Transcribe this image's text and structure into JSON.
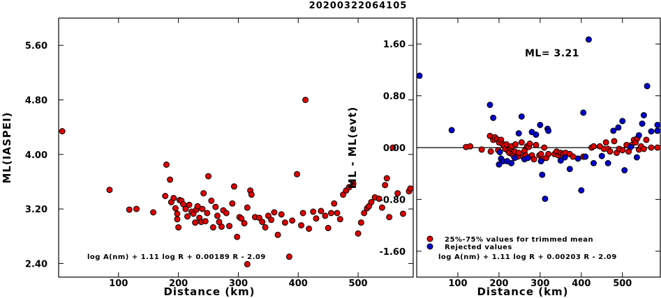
{
  "title": "20200322064105",
  "chart_data": [
    {
      "type": "scatter",
      "xlabel": "Distance (km)",
      "ylabel": "ML(IASPEI)",
      "xlim": [
        0,
        592
      ],
      "ylim": [
        2.2,
        6.0
      ],
      "xticks": [
        100,
        200,
        300,
        400,
        500
      ],
      "xtick_labels": [
        "100",
        "200",
        "300",
        "400",
        "500"
      ],
      "yticks": [
        2.4,
        3.2,
        4.0,
        4.8,
        5.6
      ],
      "ytick_labels": [
        "2.40",
        "3.20",
        "4.00",
        "4.80",
        "5.60"
      ],
      "formula": "log A(nm) + 1.11 log R + 0.00189 R - 2.09",
      "grid": false,
      "series": [
        {
          "color": "#dd0000",
          "points": [
            [
              6,
              4.34
            ],
            [
              85,
              3.48
            ],
            [
              118,
              3.19
            ],
            [
              130,
              3.2
            ],
            [
              158,
              3.15
            ],
            [
              178,
              3.39
            ],
            [
              180,
              3.85
            ],
            [
              186,
              3.63
            ],
            [
              188,
              3.3
            ],
            [
              192,
              3.36
            ],
            [
              195,
              3.21
            ],
            [
              198,
              3.05
            ],
            [
              198,
              3.13
            ],
            [
              200,
              2.93
            ],
            [
              202,
              3.33
            ],
            [
              205,
              3.32
            ],
            [
              208,
              3.27
            ],
            [
              212,
              3.2
            ],
            [
              215,
              3.09
            ],
            [
              218,
              3.26
            ],
            [
              222,
              3.16
            ],
            [
              225,
              3.13
            ],
            [
              228,
              3.0
            ],
            [
              230,
              3.19
            ],
            [
              232,
              3.24
            ],
            [
              235,
              3.07
            ],
            [
              238,
              3.01
            ],
            [
              240,
              3.2
            ],
            [
              242,
              3.43
            ],
            [
              245,
              3.02
            ],
            [
              248,
              3.14
            ],
            [
              250,
              3.68
            ],
            [
              255,
              3.32
            ],
            [
              258,
              2.93
            ],
            [
              262,
              3.23
            ],
            [
              265,
              3.1
            ],
            [
              268,
              3.01
            ],
            [
              272,
              2.94
            ],
            [
              275,
              3.18
            ],
            [
              280,
              3.14
            ],
            [
              285,
              2.95
            ],
            [
              290,
              3.28
            ],
            [
              293,
              3.53
            ],
            [
              298,
              2.79
            ],
            [
              302,
              3.08
            ],
            [
              305,
              3.06
            ],
            [
              310,
              2.99
            ],
            [
              315,
              3.22
            ],
            [
              315,
              2.39
            ],
            [
              320,
              3.47
            ],
            [
              322,
              3.41
            ],
            [
              328,
              3.08
            ],
            [
              335,
              3.07
            ],
            [
              340,
              3.01
            ],
            [
              345,
              2.93
            ],
            [
              350,
              3.1
            ],
            [
              355,
              3.04
            ],
            [
              360,
              3.15
            ],
            [
              366,
              2.82
            ],
            [
              372,
              3.12
            ],
            [
              378,
              3.0
            ],
            [
              385,
              2.5
            ],
            [
              390,
              3.03
            ],
            [
              398,
              3.71
            ],
            [
              405,
              2.96
            ],
            [
              408,
              3.14
            ],
            [
              412,
              4.8
            ],
            [
              418,
              2.91
            ],
            [
              425,
              3.16
            ],
            [
              430,
              3.06
            ],
            [
              438,
              3.17
            ],
            [
              445,
              3.1
            ],
            [
              450,
              2.92
            ],
            [
              455,
              3.14
            ],
            [
              460,
              3.28
            ],
            [
              465,
              3.14
            ],
            [
              470,
              3.05
            ],
            [
              475,
              3.41
            ],
            [
              480,
              3.47
            ],
            [
              485,
              3.52
            ],
            [
              492,
              3.57
            ],
            [
              500,
              2.84
            ],
            [
              505,
              3.0
            ],
            [
              510,
              3.14
            ],
            [
              515,
              3.21
            ],
            [
              518,
              3.24
            ],
            [
              522,
              3.3
            ],
            [
              528,
              3.37
            ],
            [
              535,
              3.35
            ],
            [
              540,
              3.22
            ],
            [
              545,
              3.55
            ],
            [
              548,
              3.65
            ],
            [
              552,
              3.08
            ],
            [
              558,
              4.1
            ],
            [
              566,
              3.43
            ],
            [
              575,
              3.13
            ],
            [
              585,
              3.46
            ],
            [
              592,
              3.5
            ]
          ]
        }
      ]
    },
    {
      "type": "scatter",
      "xlabel": "Distance (km)",
      "ylabel": "ML - ML(evt)",
      "xlim": [
        0,
        592
      ],
      "ylim": [
        -2.0,
        2.0
      ],
      "xticks": [
        100,
        200,
        300,
        400,
        500
      ],
      "xtick_labels": [
        "100",
        "200",
        "300",
        "400",
        "500"
      ],
      "yticks": [
        -1.6,
        -0.8,
        0.0,
        0.8,
        1.6
      ],
      "ytick_labels": [
        "-1.60",
        "-0.80",
        "0.00",
        "0.80",
        "1.60"
      ],
      "ml_text": "ML= 3.21",
      "formula": "log A(nm) + 1.11 log R + 0.00203 R - 2.09",
      "reference_line_y": 0.0,
      "legend": {
        "position": "bottom-left",
        "entries": [
          {
            "label": "25%-75% values for trimmed mean",
            "color": "#dd0000"
          },
          {
            "label": "Rejected values",
            "color": "#0000cc"
          }
        ]
      },
      "grid": false,
      "series": [
        {
          "name": "25%-75% values for trimmed mean",
          "color": "#dd0000",
          "points": [
            [
              120,
              0.01
            ],
            [
              130,
              0.02
            ],
            [
              158,
              -0.03
            ],
            [
              178,
              0.18
            ],
            [
              180,
              -0.06
            ],
            [
              186,
              0.12
            ],
            [
              190,
              0.16
            ],
            [
              195,
              0.13
            ],
            [
              198,
              -0.04
            ],
            [
              200,
              0.08
            ],
            [
              205,
              0.12
            ],
            [
              208,
              0.06
            ],
            [
              212,
              0.03
            ],
            [
              215,
              -0.02
            ],
            [
              218,
              0.05
            ],
            [
              222,
              -0.05
            ],
            [
              225,
              -0.08
            ],
            [
              228,
              -0.01
            ],
            [
              230,
              0.02
            ],
            [
              232,
              -0.1
            ],
            [
              235,
              -0.12
            ],
            [
              238,
              -0.06
            ],
            [
              240,
              0.05
            ],
            [
              245,
              -0.14
            ],
            [
              248,
              -0.08
            ],
            [
              255,
              0.08
            ],
            [
              258,
              -0.14
            ],
            [
              262,
              -0.05
            ],
            [
              265,
              -0.12
            ],
            [
              268,
              0.02
            ],
            [
              272,
              0.01
            ],
            [
              275,
              0.06
            ],
            [
              280,
              -0.12
            ],
            [
              285,
              -0.18
            ],
            [
              290,
              0.04
            ],
            [
              298,
              -0.12
            ],
            [
              302,
              -0.1
            ],
            [
              305,
              -0.18
            ],
            [
              310,
              0.0
            ],
            [
              315,
              -0.16
            ],
            [
              320,
              -0.1
            ],
            [
              335,
              -0.1
            ],
            [
              340,
              -0.06
            ],
            [
              345,
              -0.12
            ],
            [
              350,
              -0.08
            ],
            [
              356,
              -0.1
            ],
            [
              362,
              -0.08
            ],
            [
              372,
              -0.1
            ],
            [
              380,
              -0.14
            ],
            [
              405,
              -0.14
            ],
            [
              425,
              0.0
            ],
            [
              430,
              0.02
            ],
            [
              445,
              0.02
            ],
            [
              455,
              -0.02
            ],
            [
              460,
              0.08
            ],
            [
              465,
              -0.02
            ],
            [
              470,
              -0.06
            ],
            [
              480,
              0.1
            ],
            [
              486,
              -0.08
            ],
            [
              492,
              -0.02
            ],
            [
              500,
              -0.04
            ],
            [
              510,
              0.04
            ],
            [
              515,
              -0.06
            ],
            [
              522,
              0.04
            ],
            [
              528,
              0.12
            ],
            [
              532,
              0.08
            ],
            [
              536,
              0.14
            ],
            [
              540,
              -0.03
            ],
            [
              545,
              0.02
            ],
            [
              552,
              -0.02
            ],
            [
              558,
              0.12
            ],
            [
              570,
              0.0
            ],
            [
              585,
              0.0
            ]
          ]
        },
        {
          "name": "Rejected values",
          "color": "#0000cc",
          "points": [
            [
              6,
              1.11
            ],
            [
              85,
              0.27
            ],
            [
              178,
              0.66
            ],
            [
              186,
              0.46
            ],
            [
              200,
              -0.26
            ],
            [
              202,
              -0.07
            ],
            [
              205,
              -0.17
            ],
            [
              210,
              -0.21
            ],
            [
              220,
              -0.21
            ],
            [
              230,
              -0.24
            ],
            [
              238,
              -0.16
            ],
            [
              248,
              0.22
            ],
            [
              255,
              0.48
            ],
            [
              262,
              -0.18
            ],
            [
              270,
              -0.16
            ],
            [
              280,
              0.24
            ],
            [
              290,
              0.2
            ],
            [
              300,
              0.35
            ],
            [
              302,
              -0.21
            ],
            [
              305,
              -0.42
            ],
            [
              312,
              -0.79
            ],
            [
              318,
              0.29
            ],
            [
              320,
              0.26
            ],
            [
              350,
              -0.2
            ],
            [
              360,
              -0.15
            ],
            [
              372,
              -0.33
            ],
            [
              392,
              -0.17
            ],
            [
              400,
              -0.66
            ],
            [
              405,
              0.54
            ],
            [
              410,
              -0.14
            ],
            [
              418,
              1.67
            ],
            [
              430,
              -0.24
            ],
            [
              450,
              -0.13
            ],
            [
              465,
              -0.24
            ],
            [
              478,
              0.26
            ],
            [
              490,
              0.31
            ],
            [
              500,
              0.41
            ],
            [
              505,
              -0.35
            ],
            [
              520,
              0.01
            ],
            [
              535,
              -0.15
            ],
            [
              540,
              0.19
            ],
            [
              548,
              0.37
            ],
            [
              552,
              0.5
            ],
            [
              560,
              0.95
            ],
            [
              570,
              0.25
            ],
            [
              585,
              0.26
            ],
            [
              592,
              0.35
            ]
          ]
        }
      ]
    }
  ]
}
